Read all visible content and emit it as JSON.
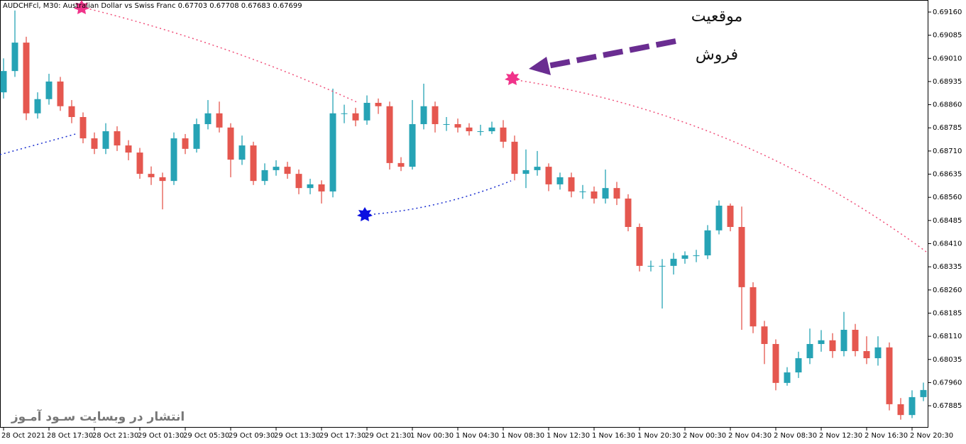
{
  "chart_data": {
    "type": "candlestick",
    "title": "AUDCHFcl, M30:  Australian Dollar vs Swiss Franc  0.67703 0.67708 0.67683 0.67699",
    "annotations": [
      "موقعیت",
      "فروش"
    ],
    "watermark": "انتشار در وبسایت  سـود آمـوز",
    "categories": [
      "28 Oct 2021",
      null,
      null,
      null,
      "28 Oct 17:30",
      null,
      null,
      null,
      "28 Oct 21:30",
      null,
      null,
      null,
      "29 Oct 01:30",
      null,
      null,
      null,
      "29 Oct 05:30",
      null,
      null,
      null,
      "29 Oct 09:30",
      null,
      null,
      null,
      "29 Oct 13:30",
      null,
      null,
      null,
      "29 Oct 17:30",
      null,
      null,
      null,
      "29 Oct 21:30",
      null,
      null,
      null,
      "1 Nov 00:30",
      null,
      null,
      null,
      "1 Nov 04:30",
      null,
      null,
      null,
      "1 Nov 08:30",
      null,
      null,
      null,
      "1 Nov 12:30",
      null,
      null,
      null,
      "1 Nov 16:30",
      null,
      null,
      null,
      "1 Nov 20:30",
      null,
      null,
      null,
      "2 Nov 00:30",
      null,
      null,
      null,
      "2 Nov 04:30",
      null,
      null,
      null,
      "2 Nov 08:30",
      null,
      null,
      null,
      "2 Nov 12:30",
      null,
      null,
      null,
      "2 Nov 16:30",
      null,
      null,
      null,
      "2 Nov 20:30",
      null
    ],
    "open": [
      0.689,
      0.68969,
      0.69061,
      0.68832,
      0.68878,
      0.68935,
      0.68855,
      0.6882,
      0.68751,
      0.68717,
      0.68774,
      0.68728,
      0.68705,
      0.68636,
      0.68625,
      0.68613,
      0.68751,
      0.68717,
      0.68797,
      0.68832,
      0.68786,
      0.68682,
      0.68728,
      0.68613,
      0.68648,
      0.68659,
      0.68636,
      0.6859,
      0.68602,
      0.68579,
      0.68832,
      0.68832,
      0.68809,
      0.68866,
      0.68855,
      0.68671,
      0.68659,
      0.68797,
      0.68855,
      0.68797,
      0.68797,
      0.68786,
      0.68774,
      0.68774,
      0.68786,
      0.6874,
      0.68636,
      0.68648,
      0.68659,
      0.68602,
      0.68625,
      0.68579,
      0.68579,
      0.68556,
      0.6859,
      0.68556,
      0.68464,
      0.68338,
      0.68338,
      0.68338,
      0.68361,
      0.68372,
      0.68372,
      0.68453,
      0.68533,
      0.68464,
      0.68269,
      0.68142,
      0.68085,
      0.67959,
      0.67993,
      0.68039,
      0.68085,
      0.68097,
      0.68062,
      0.68131,
      0.68062,
      0.68039,
      0.68074,
      0.6789,
      0.67855,
      0.67913
    ],
    "high": [
      0.6901,
      0.69165,
      0.6908,
      0.689,
      0.6896,
      0.6895,
      0.68875,
      0.68835,
      0.6877,
      0.688,
      0.6879,
      0.68745,
      0.6872,
      0.6866,
      0.6864,
      0.6877,
      0.68765,
      0.68815,
      0.68875,
      0.6887,
      0.688,
      0.6876,
      0.6874,
      0.6867,
      0.6868,
      0.68675,
      0.6865,
      0.6862,
      0.68615,
      0.68912,
      0.6886,
      0.6885,
      0.6889,
      0.6888,
      0.6887,
      0.6869,
      0.68875,
      0.68928,
      0.6887,
      0.6882,
      0.68815,
      0.688,
      0.68795,
      0.68805,
      0.6881,
      0.6876,
      0.68715,
      0.6871,
      0.6867,
      0.6864,
      0.6864,
      0.686,
      0.68595,
      0.6865,
      0.6861,
      0.6857,
      0.68475,
      0.68355,
      0.6836,
      0.6838,
      0.68385,
      0.6839,
      0.6847,
      0.6855,
      0.6854,
      0.6853,
      0.68285,
      0.6816,
      0.681,
      0.6801,
      0.6806,
      0.68135,
      0.6813,
      0.6812,
      0.68189,
      0.6815,
      0.6811,
      0.6811,
      0.6809,
      0.6791,
      0.67935,
      0.6796
    ],
    "low": [
      0.6888,
      0.6895,
      0.6881,
      0.68815,
      0.6886,
      0.6884,
      0.688,
      0.68735,
      0.687,
      0.687,
      0.6871,
      0.6868,
      0.6862,
      0.686,
      0.68521,
      0.686,
      0.687,
      0.68705,
      0.6878,
      0.6877,
      0.68625,
      0.68665,
      0.686,
      0.686,
      0.6863,
      0.6862,
      0.6857,
      0.6857,
      0.6854,
      0.6856,
      0.688,
      0.6879,
      0.68795,
      0.6883,
      0.6865,
      0.68645,
      0.6865,
      0.6878,
      0.6877,
      0.68775,
      0.6877,
      0.6876,
      0.6876,
      0.68765,
      0.6872,
      0.68615,
      0.6859,
      0.6863,
      0.6858,
      0.68585,
      0.6856,
      0.68555,
      0.6854,
      0.6854,
      0.68535,
      0.6845,
      0.6832,
      0.6832,
      0.682,
      0.6831,
      0.68345,
      0.6835,
      0.6836,
      0.6844,
      0.6845,
      0.68131,
      0.6812,
      0.6802,
      0.67935,
      0.6795,
      0.67975,
      0.6802,
      0.6806,
      0.6804,
      0.68045,
      0.68045,
      0.6802,
      0.68015,
      0.6787,
      0.6784,
      0.67845,
      0.679
    ],
    "close": [
      0.68969,
      0.69061,
      0.68832,
      0.68878,
      0.68935,
      0.68855,
      0.6882,
      0.68751,
      0.68717,
      0.68774,
      0.68728,
      0.68705,
      0.68636,
      0.68625,
      0.68613,
      0.68751,
      0.68717,
      0.68797,
      0.68832,
      0.68786,
      0.68682,
      0.68728,
      0.68613,
      0.68648,
      0.68659,
      0.68636,
      0.6859,
      0.68602,
      0.68579,
      0.68832,
      0.68832,
      0.68809,
      0.68866,
      0.68855,
      0.68671,
      0.68659,
      0.68797,
      0.68855,
      0.68797,
      0.68797,
      0.68786,
      0.68774,
      0.68774,
      0.68786,
      0.6874,
      0.68636,
      0.68648,
      0.68659,
      0.68602,
      0.68625,
      0.68579,
      0.68579,
      0.68556,
      0.6859,
      0.68556,
      0.68464,
      0.68338,
      0.68338,
      0.68338,
      0.68361,
      0.68372,
      0.68372,
      0.68453,
      0.68533,
      0.68464,
      0.68269,
      0.68142,
      0.68085,
      0.67959,
      0.67993,
      0.68039,
      0.68085,
      0.68097,
      0.68062,
      0.68131,
      0.68062,
      0.68039,
      0.68074,
      0.6789,
      0.67855,
      0.67913,
      0.67936
    ],
    "up_color": "#26a3b5",
    "down_color": "#e5574f",
    "ylim": [
      0.67814,
      0.69199
    ],
    "yticks": [
      {
        "value": 0.6916,
        "label": "0.69160"
      },
      0.69085,
      {
        "value": 0.6901,
        "label": "0.69010"
      },
      0.68935,
      {
        "value": 0.6886,
        "label": "0.68860"
      },
      0.68785,
      {
        "value": 0.6871,
        "label": "0.68710"
      },
      0.68635,
      {
        "value": 0.6856,
        "label": "0.68560"
      },
      0.68485,
      {
        "value": 0.6841,
        "label": "0.68410"
      },
      0.68335,
      {
        "value": 0.6826,
        "label": "0.68260"
      },
      0.68185,
      {
        "value": 0.6811,
        "label": "0.68110"
      },
      0.68035,
      {
        "value": 0.6796,
        "label": "0.67960"
      },
      0.67885
    ],
    "grid": false
  }
}
